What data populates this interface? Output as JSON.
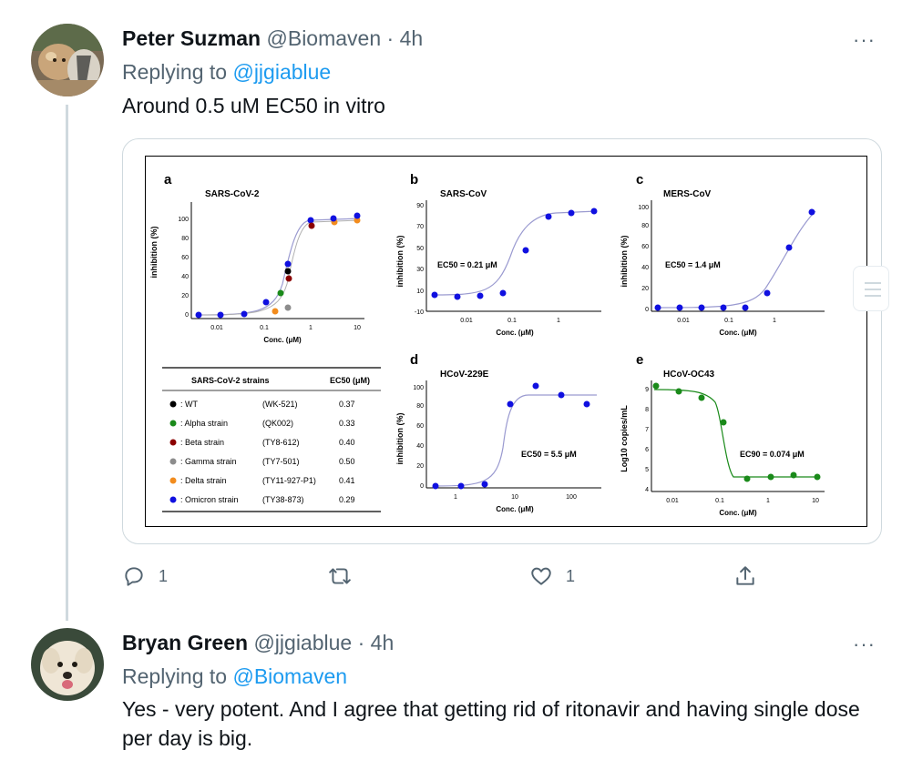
{
  "tweets": [
    {
      "name": "Peter Suzman",
      "handle": "@Biomaven",
      "time": "4h",
      "replying_prefix": "Replying to",
      "replying_to": "@jjgiablue",
      "text": "Around 0.5 uM EC50 in vitro"
    },
    {
      "name": "Bryan Green",
      "handle": "@jjgiablue",
      "time": "4h",
      "replying_prefix": "Replying to",
      "replying_to": "@Biomaven",
      "text": "Yes - very potent. And I agree that getting rid of ritonavir and having single dose per day is big."
    }
  ],
  "separator": "·",
  "more_label": "···",
  "actions": {
    "reply_count": "1",
    "like_count": "1"
  },
  "figure": {
    "panels": [
      {
        "letter": "a",
        "title": "SARS-CoV-2",
        "ylabel": "inhibition (%)",
        "xlabel": "Conc. (μM)",
        "xticks": [
          "0.01",
          "0.1",
          "1",
          "10"
        ],
        "yticks": [
          "0",
          "20",
          "40",
          "60",
          "80",
          "100"
        ]
      },
      {
        "letter": "b",
        "title": "SARS-CoV",
        "ylabel": "inhibition (%)",
        "xlabel": "Conc. (μM)",
        "xticks": [
          "0.01",
          "0.1",
          "1"
        ],
        "yticks": [
          "-10",
          "10",
          "30",
          "50",
          "70",
          "90"
        ],
        "ec": "EC50 = 0.21 μM"
      },
      {
        "letter": "c",
        "title": "MERS-CoV",
        "ylabel": "inhibition (%)",
        "xlabel": "Conc. (μM)",
        "xticks": [
          "0.01",
          "0.1",
          "1"
        ],
        "yticks": [
          "0",
          "20",
          "40",
          "60",
          "80",
          "100"
        ],
        "ec": "EC50 = 1.4 μM"
      },
      {
        "letter": "d",
        "title": "HCoV-229E",
        "ylabel": "inhibition (%)",
        "xlabel": "Conc. (μM)",
        "xticks": [
          "1",
          "10",
          "100"
        ],
        "yticks": [
          "0",
          "20",
          "40",
          "60",
          "80",
          "100"
        ],
        "ec": "EC50 = 5.5 μM"
      },
      {
        "letter": "e",
        "title": "HCoV-OC43",
        "ylabel": "Log10 copies/mL",
        "xlabel": "Conc. (μM)",
        "xticks": [
          "0.01",
          "0.1",
          "1",
          "10"
        ],
        "yticks": [
          "4",
          "5",
          "6",
          "7",
          "8",
          "9"
        ],
        "ec": "EC90 = 0.074 μM"
      }
    ],
    "table": {
      "header_strain": "SARS-CoV-2 strains",
      "header_ec": "EC50 (μM)",
      "rows": [
        {
          "label": ": WT",
          "code": "(WK-521)",
          "ec": "0.37",
          "color": "#000000"
        },
        {
          "label": ": Alpha strain",
          "code": "(QK002)",
          "ec": "0.33",
          "color": "#1a8a1a"
        },
        {
          "label": ": Beta strain",
          "code": "(TY8-612)",
          "ec": "0.40",
          "color": "#8b0000"
        },
        {
          "label": ": Gamma strain",
          "code": "(TY7-501)",
          "ec": "0.50",
          "color": "#8c8c8c"
        },
        {
          "label": ": Delta strain",
          "code": "(TY11-927-P1)",
          "ec": "0.41",
          "color": "#f28c1e"
        },
        {
          "label": ": Omicron strain",
          "code": "(TY38-873)",
          "ec": "0.29",
          "color": "#1010e0"
        }
      ]
    }
  },
  "colors": {
    "link": "#1d9bf0",
    "muted": "#536471",
    "point_blue": "#1010e0",
    "point_green": "#1a8a1a"
  }
}
